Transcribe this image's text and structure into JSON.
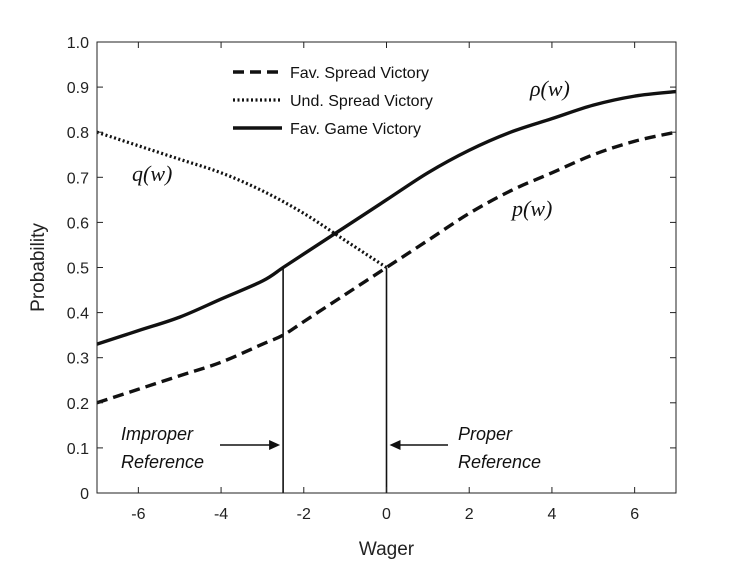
{
  "chart_data": {
    "type": "line",
    "xlabel": "Wager",
    "ylabel": "Probability",
    "xlim": [
      -7,
      7
    ],
    "ylim": [
      0,
      1
    ],
    "xticks": [
      "-6",
      "-4",
      "-2",
      "0",
      "2",
      "4",
      "6"
    ],
    "yticks": [
      "0",
      "0.1",
      "0.2",
      "0.3",
      "0.4",
      "0.5",
      "0.6",
      "0.7",
      "0.8",
      "0.9",
      "1.0"
    ],
    "grid": false,
    "legend_position": "top-center",
    "series": [
      {
        "name": "Fav. Spread Victory",
        "style": "dashed",
        "curve_label": "p(w)",
        "x": [
          -7,
          -6,
          -5,
          -4,
          -3,
          -2.5,
          -2,
          -1,
          0,
          1,
          2,
          3,
          4,
          5,
          6,
          7
        ],
        "y": [
          0.2,
          0.23,
          0.26,
          0.29,
          0.33,
          0.35,
          0.38,
          0.44,
          0.5,
          0.56,
          0.62,
          0.67,
          0.71,
          0.75,
          0.78,
          0.8
        ]
      },
      {
        "name": "Und. Spread Victory",
        "style": "dotted",
        "curve_label": "q(w)",
        "x": [
          -7,
          -6,
          -5,
          -4,
          -3,
          -2,
          -1,
          0
        ],
        "y": [
          0.8,
          0.77,
          0.74,
          0.71,
          0.67,
          0.62,
          0.56,
          0.5
        ]
      },
      {
        "name": "Fav. Game Victory",
        "style": "solid",
        "curve_label": "ρ(w)",
        "x": [
          -7,
          -6,
          -5,
          -4,
          -3,
          -2.5,
          -2,
          -1,
          0,
          1,
          2,
          3,
          4,
          5,
          6,
          7
        ],
        "y": [
          0.33,
          0.36,
          0.39,
          0.43,
          0.47,
          0.5,
          0.53,
          0.59,
          0.65,
          0.71,
          0.76,
          0.8,
          0.83,
          0.86,
          0.88,
          0.89
        ]
      }
    ],
    "reference_lines": [
      {
        "x": -2.5,
        "y_top": 0.5,
        "label_line1": "Improper",
        "label_line2": "Reference"
      },
      {
        "x": 0,
        "y_top": 0.5,
        "label_line1": "Proper",
        "label_line2": "Reference"
      }
    ]
  }
}
